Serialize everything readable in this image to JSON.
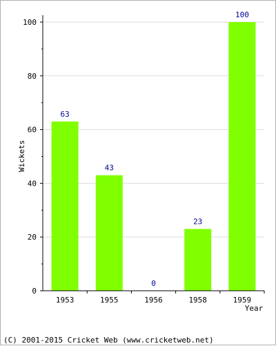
{
  "chart_data": {
    "type": "bar",
    "title": "",
    "xlabel": "Year",
    "ylabel": "Wickets",
    "categories": [
      "1953",
      "1955",
      "1956",
      "1958",
      "1959"
    ],
    "values": [
      63,
      43,
      0,
      23,
      100
    ],
    "data_labels": [
      "63",
      "43",
      "0",
      "23",
      "100"
    ],
    "ylim": [
      0,
      100
    ],
    "yticks": [
      0,
      20,
      40,
      60,
      80,
      100
    ],
    "grid": true,
    "bar_color": "#80ff00",
    "label_color": "#000099"
  },
  "footer": {
    "copyright": "(C) 2001-2015 Cricket Web (www.cricketweb.net)"
  }
}
